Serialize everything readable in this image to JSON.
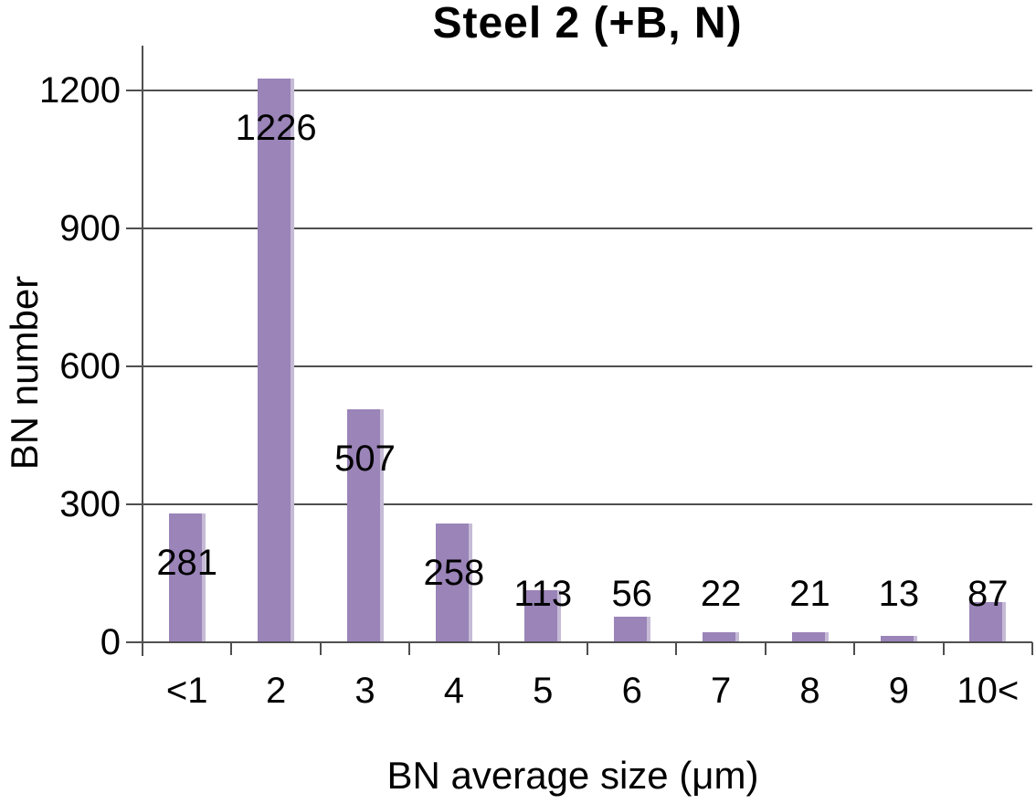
{
  "chart_data": {
    "type": "bar",
    "title": "Steel 2 (+B, N)",
    "xlabel": "BN average size (μm)",
    "ylabel": "BN number",
    "categories": [
      "<1",
      "2",
      "3",
      "4",
      "5",
      "6",
      "7",
      "8",
      "9",
      "10<"
    ],
    "values": [
      281,
      1226,
      507,
      258,
      113,
      56,
      22,
      21,
      13,
      87
    ],
    "y_ticks": [
      0,
      300,
      600,
      900,
      1200
    ],
    "ylim": [
      0,
      1300
    ],
    "grid": true,
    "legend": false,
    "bar_color": "#9a84b8",
    "bar_edge_color": "#c6bbd6",
    "axis_color": "#4f4f4f",
    "text_color": "#000000",
    "background": "#ffffff"
  }
}
